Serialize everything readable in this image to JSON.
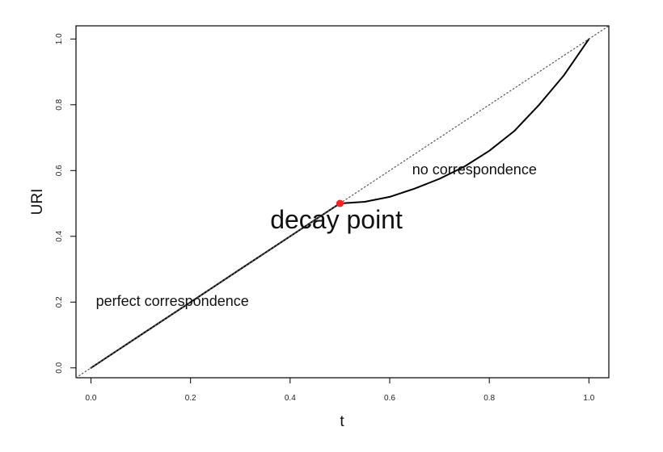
{
  "chart_data": {
    "type": "line",
    "xlabel": "t",
    "ylabel": "URI",
    "xlim": [
      -0.03,
      1.04
    ],
    "ylim": [
      -0.03,
      1.04
    ],
    "x_ticks": [
      "0.0",
      "0.2",
      "0.4",
      "0.6",
      "0.8",
      "1.0"
    ],
    "y_ticks": [
      "0.0",
      "0.2",
      "0.4",
      "0.6",
      "0.8",
      "1.0"
    ],
    "grid": false,
    "series": [
      {
        "style": "solid",
        "color": "#000000",
        "x": [
          0.0,
          0.1,
          0.2,
          0.3,
          0.4,
          0.5,
          0.52,
          0.55,
          0.6,
          0.65,
          0.7,
          0.75,
          0.8,
          0.85,
          0.9,
          0.95,
          1.0
        ],
        "y": [
          0.0,
          0.1,
          0.2,
          0.3,
          0.4,
          0.5,
          0.502,
          0.505,
          0.52,
          0.545,
          0.575,
          0.612,
          0.66,
          0.72,
          0.8,
          0.89,
          1.0
        ]
      },
      {
        "style": "dotted",
        "color": "#555555",
        "x": [
          -0.03,
          1.04
        ],
        "y": [
          -0.03,
          1.04
        ]
      }
    ],
    "point": {
      "x": 0.5,
      "y": 0.5,
      "color": "#ff2020"
    },
    "annotations": [
      {
        "text": "perfect correspondence",
        "x": 0.01,
        "y": 0.2,
        "color": "#111111"
      },
      {
        "text": "no correspondence",
        "x": 0.645,
        "y": 0.6,
        "color": "#111111"
      },
      {
        "text": "decay point",
        "x": 0.36,
        "y": 0.445,
        "color": "#ff2020"
      }
    ]
  }
}
